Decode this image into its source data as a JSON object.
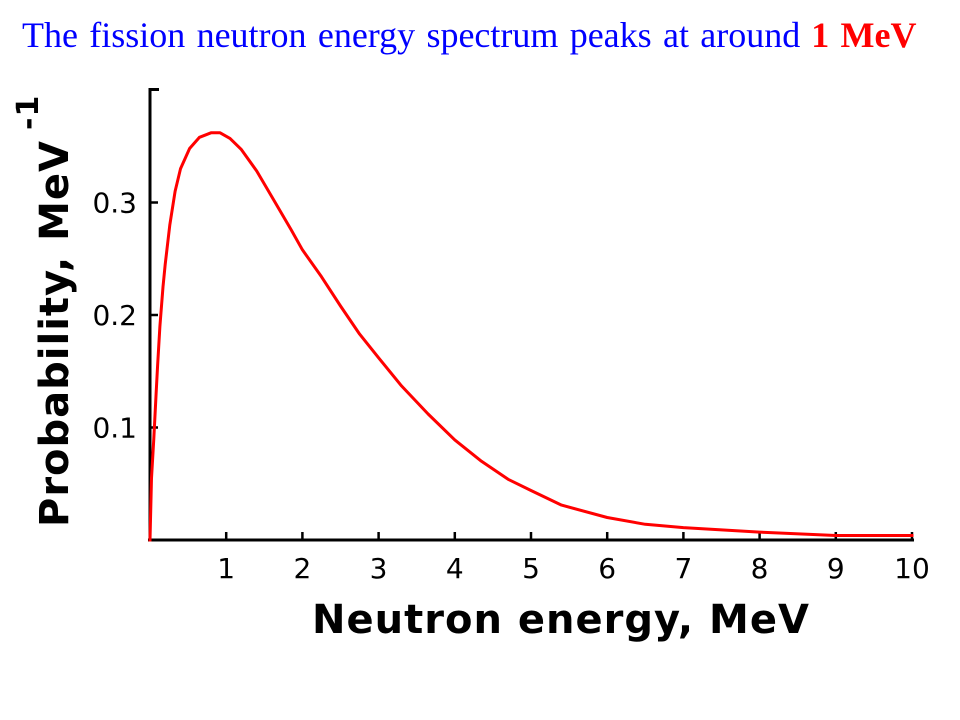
{
  "slide": {
    "heading_text": "The fission neutron energy spectrum peaks at around",
    "heading_highlight": "1 MeV"
  },
  "colors": {
    "heading": "#0000FF",
    "highlight": "#FF0000",
    "series": "#FF0000",
    "axis": "#000000"
  },
  "chart_data": {
    "type": "line",
    "xlabel": "Neutron energy, MeV",
    "ylabel": "Probability, MeV",
    "ylabel_exponent": "-1",
    "xlim": [
      0,
      10
    ],
    "ylim": [
      0,
      0.4
    ],
    "x_ticks": [
      "1",
      "2",
      "3",
      "4",
      "5",
      "6",
      "7",
      "8",
      "9",
      "10"
    ],
    "y_ticks": [
      "0.1",
      "0.2",
      "0.3"
    ],
    "grid": false,
    "series": [
      {
        "x": [
          0,
          0.02,
          0.05,
          0.08,
          0.1,
          0.13,
          0.17,
          0.2,
          0.26,
          0.33,
          0.4,
          0.52,
          0.65,
          0.8,
          0.92,
          1.05,
          1.2,
          1.4,
          1.6,
          1.85,
          2.0,
          2.25,
          2.5,
          2.75,
          3.0,
          3.3,
          3.65,
          4.0,
          4.35,
          4.7,
          5.0,
          5.4,
          6.0,
          6.5,
          7.0,
          8.0,
          9.0,
          10.0
        ],
        "y": [
          0,
          0.055,
          0.09,
          0.13,
          0.155,
          0.19,
          0.225,
          0.245,
          0.28,
          0.31,
          0.33,
          0.348,
          0.358,
          0.362,
          0.362,
          0.357,
          0.347,
          0.328,
          0.305,
          0.276,
          0.258,
          0.234,
          0.208,
          0.183,
          0.162,
          0.137,
          0.112,
          0.089,
          0.07,
          0.054,
          0.044,
          0.031,
          0.02,
          0.014,
          0.011,
          0.007,
          0.004,
          0.004
        ]
      }
    ]
  }
}
